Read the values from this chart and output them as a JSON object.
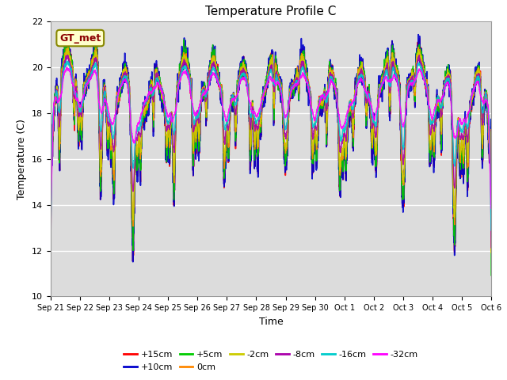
{
  "title": "Temperature Profile C",
  "xlabel": "Time",
  "ylabel": "Temperature (C)",
  "ylim": [
    10,
    22
  ],
  "yticks": [
    10,
    12,
    14,
    16,
    18,
    20,
    22
  ],
  "annotation": "GT_met",
  "bg_color": "#dcdcdc",
  "series": [
    {
      "label": "+15cm",
      "color": "#ff0000"
    },
    {
      "label": "+10cm",
      "color": "#0000cc"
    },
    {
      "label": "+5cm",
      "color": "#00cc00"
    },
    {
      "label": "0cm",
      "color": "#ff8800"
    },
    {
      "label": "-2cm",
      "color": "#cccc00"
    },
    {
      "label": "-8cm",
      "color": "#aa00aa"
    },
    {
      "label": "-16cm",
      "color": "#00cccc"
    },
    {
      "label": "-32cm",
      "color": "#ff00ff"
    }
  ],
  "n_points": 3600,
  "x_start": 0,
  "x_end": 15,
  "xtick_labels": [
    "Sep 21",
    "Sep 22",
    "Sep 23",
    "Sep 24",
    "Sep 25",
    "Sep 26",
    "Sep 27",
    "Sep 28",
    "Sep 29",
    "Sep 30",
    "Oct 1",
    "Oct 2",
    "Oct 3",
    "Oct 4",
    "Oct 5",
    "Oct 6"
  ],
  "xtick_positions": [
    0,
    1,
    2,
    3,
    4,
    5,
    6,
    7,
    8,
    9,
    10,
    11,
    12,
    13,
    14,
    15
  ]
}
